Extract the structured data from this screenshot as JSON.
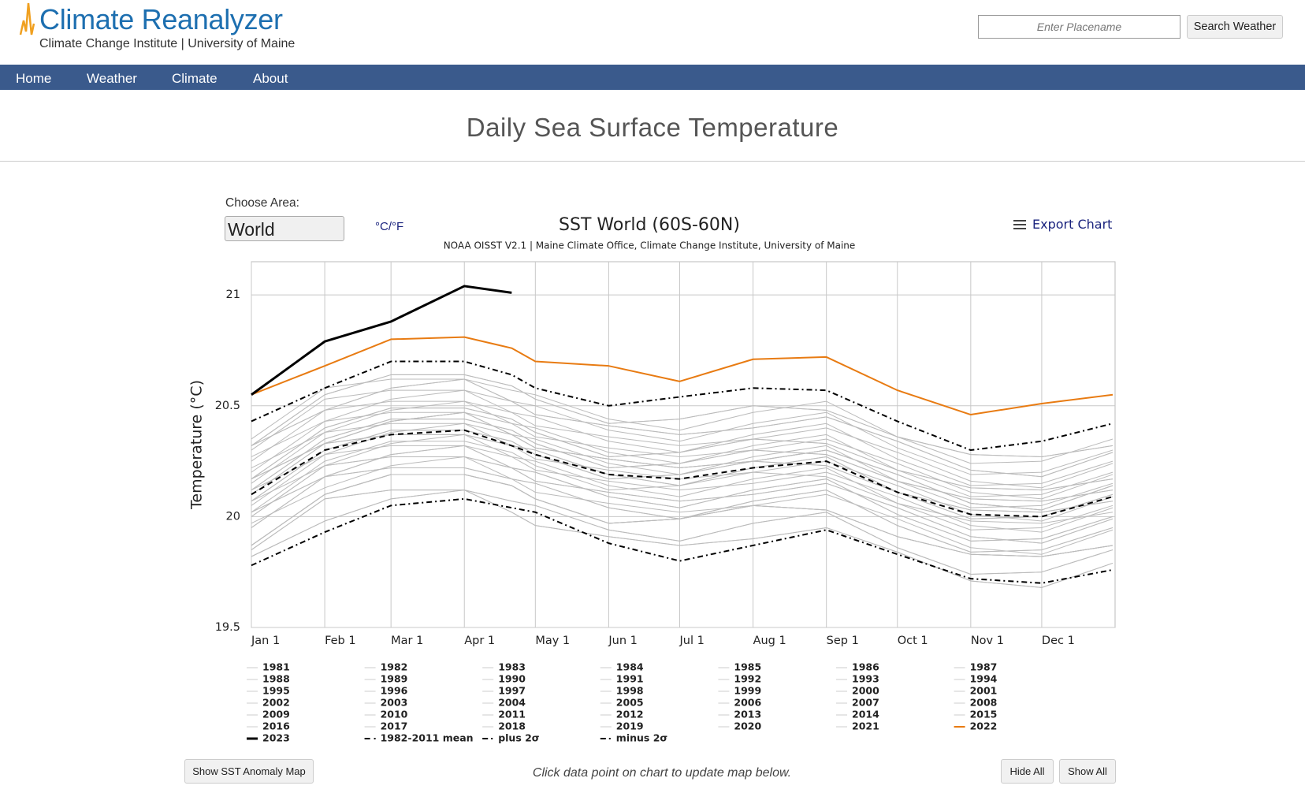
{
  "header": {
    "logo": "Climate Reanalyzer",
    "tagline": "Climate Change Institute | University of Maine"
  },
  "search": {
    "placeholder": "Enter Placename",
    "button": "Search Weather"
  },
  "nav": [
    "Home",
    "Weather",
    "Climate",
    "About"
  ],
  "page_title": "Daily Sea Surface Temperature",
  "controls": {
    "area_label": "Choose Area:",
    "area_value": "World",
    "units_toggle": "°C/°F",
    "export": "Export Chart"
  },
  "chart_data": {
    "type": "line",
    "title": "SST World (60S-60N)",
    "subtitle": "NOAA OISST V2.1 | Maine Climate Office, Climate Change Institute, University of Maine",
    "y_label": "Temperature (°C)",
    "x": [
      1,
      32,
      60,
      91,
      111,
      121,
      152,
      182,
      213,
      244,
      274,
      305,
      335,
      365
    ],
    "xlim": [
      1,
      366
    ],
    "xticks": [
      {
        "value": 1,
        "label": "Jan 1"
      },
      {
        "value": 32,
        "label": "Feb 1"
      },
      {
        "value": 60,
        "label": "Mar 1"
      },
      {
        "value": 91,
        "label": "Apr 1"
      },
      {
        "value": 121,
        "label": "May 1"
      },
      {
        "value": 152,
        "label": "Jun 1"
      },
      {
        "value": 182,
        "label": "Jul 1"
      },
      {
        "value": 213,
        "label": "Aug 1"
      },
      {
        "value": 244,
        "label": "Sep 1"
      },
      {
        "value": 274,
        "label": "Oct 1"
      },
      {
        "value": 305,
        "label": "Nov 1"
      },
      {
        "value": 335,
        "label": "Dec 1"
      }
    ],
    "ylim": [
      19.5,
      21.15
    ],
    "yticks": [
      19.5,
      20,
      20.5,
      21
    ],
    "grid": true,
    "series": [
      {
        "name": "1981",
        "color": "#bbbbbb",
        "values": [
          19.85,
          20.08,
          20.12,
          20.12,
          20.07,
          20.05,
          19.94,
          19.89,
          19.97,
          20.02,
          19.86,
          19.74,
          19.75,
          19.85
        ]
      },
      {
        "name": "1982",
        "color": "#bbbbbb",
        "values": [
          19.82,
          19.98,
          20.08,
          20.12,
          20.02,
          19.96,
          19.91,
          19.87,
          19.9,
          19.95,
          19.84,
          19.71,
          19.68,
          19.79
        ]
      },
      {
        "name": "1983",
        "color": "#bbbbbb",
        "values": [
          19.87,
          20.1,
          20.19,
          20.19,
          20.14,
          20.08,
          19.97,
          19.99,
          20.05,
          20.03,
          19.91,
          19.83,
          19.82,
          19.87
        ]
      },
      {
        "name": "1984",
        "color": "#bbbbbb",
        "values": [
          19.85,
          20.08,
          20.12,
          20.12,
          20.07,
          20.05,
          19.94,
          19.89,
          19.97,
          20.02,
          19.86,
          19.74,
          19.75,
          19.85
        ]
      },
      {
        "name": "1985",
        "color": "#bbbbbb",
        "values": [
          19.82,
          19.98,
          20.08,
          20.12,
          20.02,
          19.96,
          19.91,
          19.87,
          19.9,
          19.95,
          19.84,
          19.71,
          19.68,
          19.79
        ]
      },
      {
        "name": "1986",
        "color": "#bbbbbb",
        "values": [
          19.87,
          20.1,
          20.19,
          20.19,
          20.14,
          20.08,
          19.97,
          19.99,
          20.05,
          20.03,
          19.91,
          19.83,
          19.82,
          19.87
        ]
      },
      {
        "name": "1987",
        "color": "#bbbbbb",
        "values": [
          19.95,
          20.18,
          20.22,
          20.22,
          20.17,
          20.15,
          20.04,
          19.99,
          20.07,
          20.12,
          19.96,
          19.84,
          19.85,
          19.95
        ]
      },
      {
        "name": "1988",
        "color": "#bbbbbb",
        "values": [
          20.02,
          20.18,
          20.28,
          20.32,
          20.22,
          20.16,
          20.11,
          20.07,
          20.1,
          20.15,
          20.04,
          19.91,
          19.88,
          19.99
        ]
      },
      {
        "name": "1989",
        "color": "#bbbbbb",
        "values": [
          19.87,
          20.1,
          20.19,
          20.19,
          20.14,
          20.08,
          19.97,
          19.99,
          20.05,
          20.03,
          19.91,
          19.83,
          19.82,
          19.87
        ]
      },
      {
        "name": "1990",
        "color": "#bbbbbb",
        "values": [
          20.0,
          20.23,
          20.27,
          20.27,
          20.22,
          20.2,
          20.09,
          20.04,
          20.12,
          20.17,
          20.01,
          19.89,
          19.9,
          20.0
        ]
      },
      {
        "name": "1991",
        "color": "#bbbbbb",
        "values": [
          19.97,
          20.13,
          20.23,
          20.27,
          20.17,
          20.11,
          20.06,
          20.02,
          20.05,
          20.1,
          19.99,
          19.86,
          19.83,
          19.94
        ]
      },
      {
        "name": "1992",
        "color": "#bbbbbb",
        "values": [
          19.87,
          20.1,
          20.19,
          20.19,
          20.14,
          20.08,
          19.97,
          19.99,
          20.05,
          20.03,
          19.91,
          19.83,
          19.82,
          19.87
        ]
      },
      {
        "name": "1993",
        "color": "#bbbbbb",
        "values": [
          19.95,
          20.18,
          20.22,
          20.22,
          20.17,
          20.15,
          20.04,
          19.99,
          20.07,
          20.12,
          19.96,
          19.84,
          19.85,
          19.95
        ]
      },
      {
        "name": "1994",
        "color": "#bbbbbb",
        "values": [
          20.02,
          20.18,
          20.28,
          20.32,
          20.22,
          20.16,
          20.11,
          20.07,
          20.1,
          20.15,
          20.04,
          19.91,
          19.88,
          19.99
        ]
      },
      {
        "name": "1995",
        "color": "#bbbbbb",
        "values": [
          20.02,
          20.25,
          20.34,
          20.34,
          20.29,
          20.23,
          20.12,
          20.14,
          20.2,
          20.18,
          20.06,
          19.98,
          19.97,
          20.02
        ]
      },
      {
        "name": "1996",
        "color": "#bbbbbb",
        "values": [
          20.0,
          20.23,
          20.27,
          20.27,
          20.22,
          20.2,
          20.09,
          20.04,
          20.12,
          20.17,
          20.01,
          19.89,
          19.9,
          20.0
        ]
      },
      {
        "name": "1997",
        "color": "#bbbbbb",
        "values": [
          20.12,
          20.28,
          20.38,
          20.42,
          20.32,
          20.26,
          20.21,
          20.17,
          20.2,
          20.25,
          20.14,
          20.01,
          19.98,
          20.09
        ]
      },
      {
        "name": "1998",
        "color": "#bbbbbb",
        "values": [
          20.12,
          20.35,
          20.44,
          20.44,
          20.39,
          20.33,
          20.22,
          20.24,
          20.3,
          20.28,
          20.16,
          20.08,
          20.07,
          20.12
        ]
      },
      {
        "name": "1999",
        "color": "#bbbbbb",
        "values": [
          20.05,
          20.28,
          20.32,
          20.32,
          20.27,
          20.25,
          20.14,
          20.09,
          20.17,
          20.22,
          20.06,
          19.94,
          19.95,
          20.05
        ]
      },
      {
        "name": "2000",
        "color": "#bbbbbb",
        "values": [
          20.07,
          20.23,
          20.33,
          20.37,
          20.27,
          20.21,
          20.16,
          20.12,
          20.15,
          20.2,
          20.09,
          19.96,
          19.93,
          20.04
        ]
      },
      {
        "name": "2001",
        "color": "#bbbbbb",
        "values": [
          20.07,
          20.3,
          20.39,
          20.39,
          20.34,
          20.28,
          20.17,
          20.19,
          20.25,
          20.23,
          20.11,
          20.03,
          20.02,
          20.07
        ]
      },
      {
        "name": "2002",
        "color": "#bbbbbb",
        "values": [
          20.15,
          20.38,
          20.42,
          20.42,
          20.37,
          20.35,
          20.24,
          20.19,
          20.27,
          20.32,
          20.16,
          20.04,
          20.05,
          20.15
        ]
      },
      {
        "name": "2003",
        "color": "#bbbbbb",
        "values": [
          20.17,
          20.33,
          20.43,
          20.47,
          20.37,
          20.31,
          20.26,
          20.22,
          20.25,
          20.3,
          20.19,
          20.06,
          20.03,
          20.14
        ]
      },
      {
        "name": "2004",
        "color": "#bbbbbb",
        "values": [
          20.12,
          20.35,
          20.44,
          20.44,
          20.39,
          20.33,
          20.22,
          20.24,
          20.3,
          20.28,
          20.16,
          20.08,
          20.07,
          20.12
        ]
      },
      {
        "name": "2005",
        "color": "#bbbbbb",
        "values": [
          20.2,
          20.43,
          20.47,
          20.47,
          20.42,
          20.4,
          20.29,
          20.24,
          20.32,
          20.37,
          20.21,
          20.09,
          20.1,
          20.2
        ]
      },
      {
        "name": "2006",
        "color": "#bbbbbb",
        "values": [
          20.17,
          20.33,
          20.43,
          20.47,
          20.37,
          20.31,
          20.26,
          20.22,
          20.25,
          20.3,
          20.19,
          20.06,
          20.03,
          20.14
        ]
      },
      {
        "name": "2007",
        "color": "#bbbbbb",
        "values": [
          20.07,
          20.3,
          20.39,
          20.39,
          20.34,
          20.28,
          20.17,
          20.19,
          20.25,
          20.23,
          20.11,
          20.03,
          20.02,
          20.07
        ]
      },
      {
        "name": "2008",
        "color": "#bbbbbb",
        "values": [
          20.1,
          20.33,
          20.37,
          20.37,
          20.32,
          20.3,
          20.19,
          20.14,
          20.22,
          20.27,
          20.11,
          19.99,
          20.0,
          20.1
        ]
      },
      {
        "name": "2009",
        "color": "#bbbbbb",
        "values": [
          20.22,
          20.38,
          20.48,
          20.52,
          20.42,
          20.36,
          20.31,
          20.27,
          20.3,
          20.35,
          20.24,
          20.11,
          20.08,
          20.19
        ]
      },
      {
        "name": "2010",
        "color": "#bbbbbb",
        "values": [
          20.17,
          20.4,
          20.49,
          20.49,
          20.44,
          20.38,
          20.27,
          20.29,
          20.35,
          20.33,
          20.21,
          20.13,
          20.12,
          20.17
        ]
      },
      {
        "name": "2011",
        "color": "#bbbbbb",
        "values": [
          20.1,
          20.33,
          20.37,
          20.37,
          20.32,
          20.3,
          20.19,
          20.14,
          20.22,
          20.27,
          20.11,
          19.99,
          20.0,
          20.1
        ]
      },
      {
        "name": "2012",
        "color": "#bbbbbb",
        "values": [
          20.17,
          20.33,
          20.43,
          20.47,
          20.37,
          20.31,
          20.26,
          20.22,
          20.25,
          20.3,
          20.19,
          20.06,
          20.03,
          20.14
        ]
      },
      {
        "name": "2013",
        "color": "#bbbbbb",
        "values": [
          20.17,
          20.4,
          20.49,
          20.49,
          20.44,
          20.38,
          20.27,
          20.29,
          20.35,
          20.33,
          20.21,
          20.13,
          20.12,
          20.17
        ]
      },
      {
        "name": "2014",
        "color": "#bbbbbb",
        "values": [
          20.25,
          20.48,
          20.52,
          20.52,
          20.47,
          20.45,
          20.34,
          20.29,
          20.37,
          20.42,
          20.26,
          20.14,
          20.15,
          20.25
        ]
      },
      {
        "name": "2015",
        "color": "#bbbbbb",
        "values": [
          20.32,
          20.48,
          20.58,
          20.62,
          20.52,
          20.46,
          20.41,
          20.37,
          20.4,
          20.45,
          20.34,
          20.21,
          20.18,
          20.29
        ]
      },
      {
        "name": "2016",
        "color": "#bbbbbb",
        "values": [
          20.32,
          20.55,
          20.64,
          20.64,
          20.59,
          20.53,
          20.42,
          20.44,
          20.5,
          20.48,
          20.36,
          20.28,
          20.27,
          20.32
        ]
      },
      {
        "name": "2017",
        "color": "#bbbbbb",
        "values": [
          20.3,
          20.53,
          20.57,
          20.57,
          20.52,
          20.5,
          20.39,
          20.34,
          20.42,
          20.47,
          20.31,
          20.19,
          20.2,
          20.3
        ]
      },
      {
        "name": "2018",
        "color": "#bbbbbb",
        "values": [
          20.27,
          20.43,
          20.53,
          20.57,
          20.47,
          20.41,
          20.36,
          20.32,
          20.35,
          20.4,
          20.29,
          20.16,
          20.13,
          20.24
        ]
      },
      {
        "name": "2019",
        "color": "#bbbbbb",
        "values": [
          20.32,
          20.55,
          20.64,
          20.64,
          20.59,
          20.53,
          20.42,
          20.44,
          20.5,
          20.48,
          20.36,
          20.28,
          20.27,
          20.32
        ]
      },
      {
        "name": "2020",
        "color": "#bbbbbb",
        "values": [
          20.35,
          20.58,
          20.62,
          20.62,
          20.57,
          20.55,
          20.44,
          20.39,
          20.47,
          20.52,
          20.36,
          20.24,
          20.25,
          20.35
        ]
      },
      {
        "name": "2021",
        "color": "#bbbbbb",
        "values": [
          20.32,
          20.48,
          20.58,
          20.62,
          20.52,
          20.46,
          20.41,
          20.37,
          20.4,
          20.45,
          20.34,
          20.21,
          20.18,
          20.29
        ]
      },
      {
        "name": "2022",
        "color": "#e87b12",
        "width": 2,
        "values": [
          20.55,
          20.68,
          20.8,
          20.81,
          20.76,
          20.7,
          20.68,
          20.61,
          20.71,
          20.72,
          20.57,
          20.46,
          20.51,
          20.55
        ]
      },
      {
        "name": "2023",
        "color": "#000000",
        "width": 3,
        "values": [
          20.55,
          20.79,
          20.88,
          21.04,
          21.01,
          null,
          null,
          null,
          null,
          null,
          null,
          null,
          null,
          null
        ]
      },
      {
        "name": "1982-2011 mean",
        "color": "#000000",
        "width": 2,
        "dash": "dash",
        "values": [
          20.1,
          20.3,
          20.37,
          20.39,
          20.32,
          20.28,
          20.19,
          20.17,
          20.22,
          20.25,
          20.11,
          20.01,
          20.0,
          20.09
        ]
      },
      {
        "name": "plus 2σ",
        "color": "#000000",
        "width": 2,
        "dash": "dashdot",
        "values": [
          20.43,
          20.58,
          20.7,
          20.7,
          20.64,
          20.58,
          20.5,
          20.54,
          20.58,
          20.57,
          20.43,
          20.3,
          20.34,
          20.42
        ]
      },
      {
        "name": "minus 2σ",
        "color": "#000000",
        "width": 2,
        "dash": "dashdot",
        "values": [
          19.78,
          19.93,
          20.05,
          20.08,
          20.04,
          20.02,
          19.88,
          19.8,
          19.87,
          19.94,
          19.83,
          19.72,
          19.7,
          19.76
        ]
      }
    ]
  },
  "buttons": {
    "anomaly_map": "Show SST Anomaly Map",
    "hide_all": "Hide All",
    "show_all": "Show All"
  },
  "note": "Click data point on chart to update map below."
}
